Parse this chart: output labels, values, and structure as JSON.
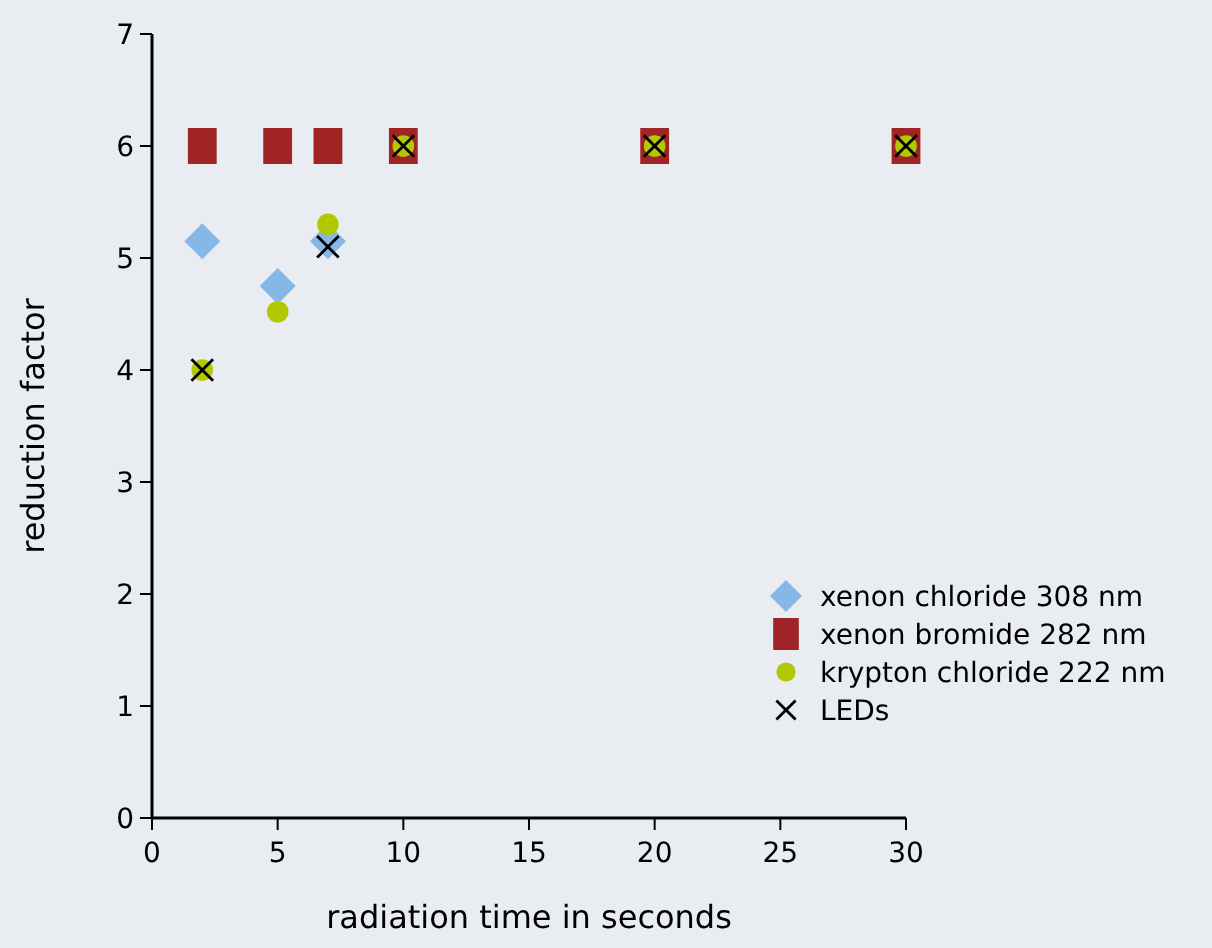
{
  "chart_data": {
    "type": "scatter",
    "xlabel": "radiation time in seconds",
    "ylabel": "reduction factor",
    "xlim": [
      0,
      30
    ],
    "xticks": [
      0,
      5,
      10,
      15,
      20,
      25,
      30
    ],
    "ylim": [
      0,
      7
    ],
    "yticks": [
      0,
      1,
      2,
      3,
      4,
      5,
      6,
      7
    ],
    "grid": false,
    "legend": "bottom right",
    "series": [
      {
        "name": "xenon chloride 308 nm",
        "color": "#85b8e6",
        "marker": "diamond",
        "x": [
          2,
          5,
          7
        ],
        "values": [
          5.15,
          4.75,
          5.15
        ]
      },
      {
        "name": "xenon bromide 282 nm",
        "color": "#a02325",
        "marker": "square",
        "x": [
          2,
          5,
          7,
          10,
          20,
          30
        ],
        "values": [
          6,
          6,
          6,
          6,
          6,
          6
        ]
      },
      {
        "name": "krypton chloride 222 nm",
        "color": "#b2c800",
        "marker": "circle",
        "x": [
          2,
          5,
          7,
          10,
          20,
          30
        ],
        "values": [
          4,
          4.52,
          5.3,
          6,
          6,
          6
        ]
      },
      {
        "name": "LEDs",
        "color": "#000000",
        "marker": "cross",
        "x": [
          2,
          7,
          10,
          20,
          30
        ],
        "values": [
          4,
          5.1,
          6,
          6,
          6
        ]
      }
    ]
  }
}
